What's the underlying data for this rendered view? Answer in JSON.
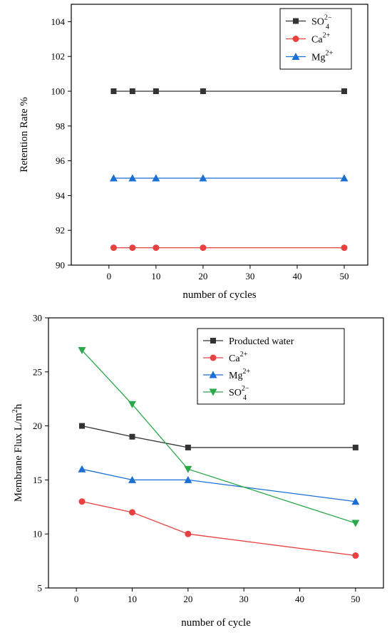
{
  "chart_data": [
    {
      "type": "line",
      "xlabel": "number of cycles",
      "ylabel": "Retention Rate %",
      "xlim": [
        -8,
        55
      ],
      "ylim": [
        90,
        105
      ],
      "xticks": [
        0,
        10,
        20,
        30,
        40,
        50
      ],
      "yticks": [
        90,
        92,
        94,
        96,
        98,
        100,
        102,
        104
      ],
      "x": [
        1,
        5,
        10,
        20,
        50
      ],
      "legend_position": "top-right",
      "grid": false,
      "series": [
        {
          "name": "SO",
          "sup": "2−",
          "sub": "4",
          "color": "#333333",
          "marker": "square",
          "values": [
            100,
            100,
            100,
            100,
            100
          ]
        },
        {
          "name": "Ca",
          "sup": "2+",
          "sub": "",
          "color": "#e8413f",
          "marker": "circle",
          "values": [
            91,
            91,
            91,
            91,
            91
          ]
        },
        {
          "name": "Mg",
          "sup": "2+",
          "sub": "",
          "color": "#1a6fd4",
          "marker": "triangle-up",
          "values": [
            95,
            95,
            95,
            95,
            95
          ]
        }
      ]
    },
    {
      "type": "line",
      "xlabel": "number of cycle",
      "ylabel": "Membrane Flux L/m",
      "ylabel_sup": "2",
      "ylabel_tail": "h",
      "xlim": [
        -5,
        55
      ],
      "ylim": [
        5,
        30
      ],
      "xticks": [
        0,
        10,
        20,
        30,
        40,
        50
      ],
      "yticks": [
        5,
        10,
        15,
        20,
        25,
        30
      ],
      "x": [
        1,
        10,
        20,
        50
      ],
      "legend_position": "top-right",
      "grid": false,
      "series": [
        {
          "name": "Producted water",
          "sup": "",
          "sub": "",
          "color": "#333333",
          "marker": "square",
          "values": [
            20,
            19,
            18,
            18
          ]
        },
        {
          "name": "Ca",
          "sup": "2+",
          "sub": "",
          "color": "#e8413f",
          "marker": "circle",
          "values": [
            13,
            12,
            10,
            8
          ]
        },
        {
          "name": "Mg",
          "sup": "2+",
          "sub": "",
          "color": "#1a6fd4",
          "marker": "triangle-up",
          "values": [
            16,
            15,
            15,
            13
          ]
        },
        {
          "name": "SO",
          "sup": "2−",
          "sub": "4",
          "color": "#2aa84a",
          "marker": "triangle-down",
          "values": [
            27,
            22,
            16,
            11
          ]
        }
      ]
    }
  ]
}
